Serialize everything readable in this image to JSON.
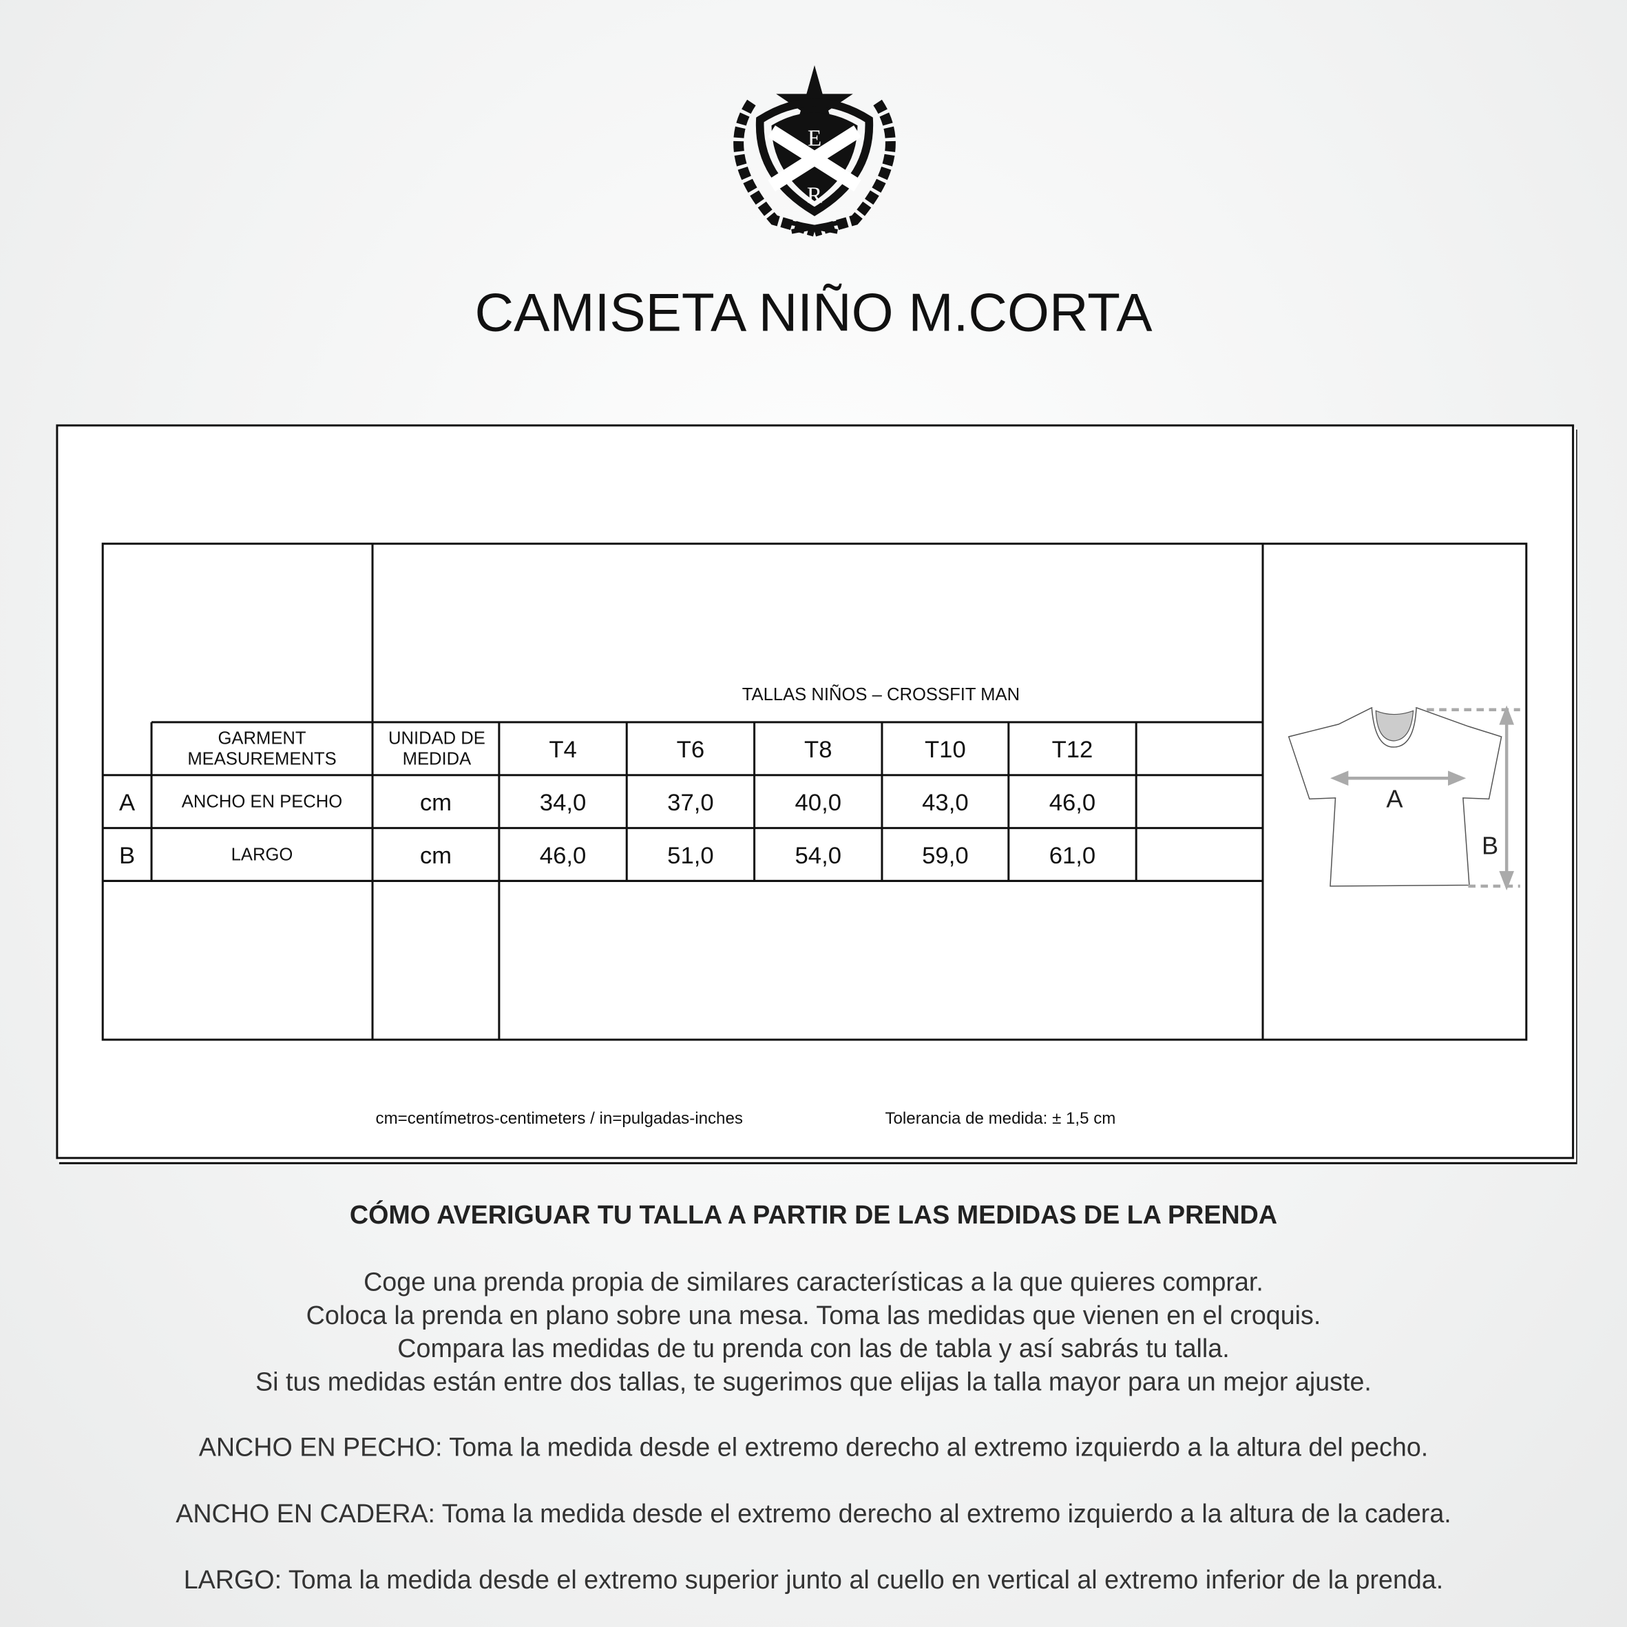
{
  "brand": {
    "logo": "laurel crest with star and X shield",
    "logo_letters": [
      "E",
      "R"
    ]
  },
  "title": "CAMISETA NIÑO M.CORTA",
  "table": {
    "caption": "TALLAS NIÑOS – CROSSFIT MAN",
    "headers": {
      "garment": "GARMENT MEASUREMENTS",
      "unit": "UNIDAD DE MEDIDA",
      "sizes": [
        "T4",
        "T6",
        "T8",
        "T10",
        "T12",
        ""
      ]
    },
    "rows": [
      {
        "key": "A",
        "name": "ANCHO EN PECHO",
        "unit": "cm",
        "values": [
          "34,0",
          "37,0",
          "40,0",
          "43,0",
          "46,0",
          ""
        ]
      },
      {
        "key": "B",
        "name": "LARGO",
        "unit": "cm",
        "values": [
          "46,0",
          "51,0",
          "54,0",
          "59,0",
          "61,0",
          ""
        ]
      }
    ],
    "diagram": {
      "label_a": "A",
      "label_b": "B"
    }
  },
  "notes": {
    "units": "cm=centímetros-centimeters / in=pulgadas-inches",
    "tolerance": "Tolerancia de medida: ± 1,5 cm"
  },
  "guide": {
    "heading": "CÓMO AVERIGUAR TU TALLA A PARTIR DE LAS MEDIDAS DE LA PRENDA",
    "lines": [
      "Coge una prenda propia de similares características a la que quieres comprar.",
      "Coloca la prenda en plano sobre una mesa. Toma las medidas que vienen en el croquis.",
      "Compara las medidas de tu prenda con las de tabla y así sabrás tu talla.",
      "Si tus medidas están entre dos tallas, te sugerimos que elijas la talla mayor para un mejor ajuste."
    ],
    "defs": [
      "ANCHO EN PECHO: Toma la medida desde el extremo derecho al extremo izquierdo a la altura del pecho.",
      "ANCHO EN CADERA: Toma la medida desde el extremo derecho al extremo izquierdo a la altura de la cadera.",
      "LARGO: Toma la medida desde el extremo superior junto al cuello en vertical al extremo inferior de la prenda."
    ]
  }
}
